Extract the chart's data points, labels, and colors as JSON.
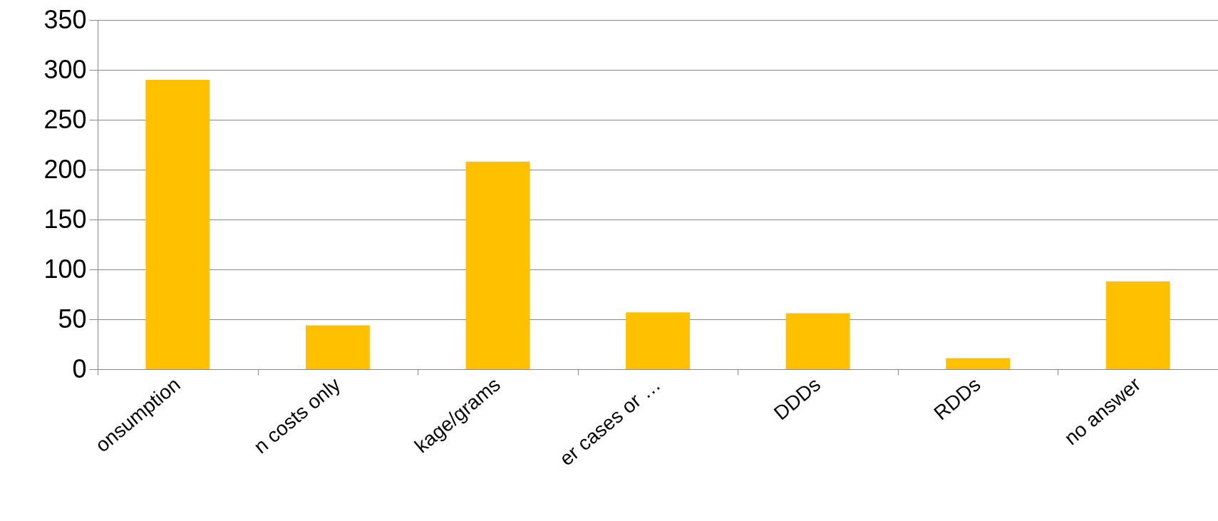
{
  "chart_data": {
    "type": "bar",
    "categories": [
      "onsumption",
      "n costs only",
      "kage/grams",
      "er cases or …",
      "DDDs",
      "RDDs",
      "no answer"
    ],
    "values": [
      290,
      44,
      208,
      57,
      56,
      11,
      88
    ],
    "color": "#ffc000",
    "ylim": [
      0,
      350
    ],
    "yticks": [
      0,
      50,
      100,
      150,
      200,
      250,
      300,
      350
    ],
    "grid": "y"
  }
}
